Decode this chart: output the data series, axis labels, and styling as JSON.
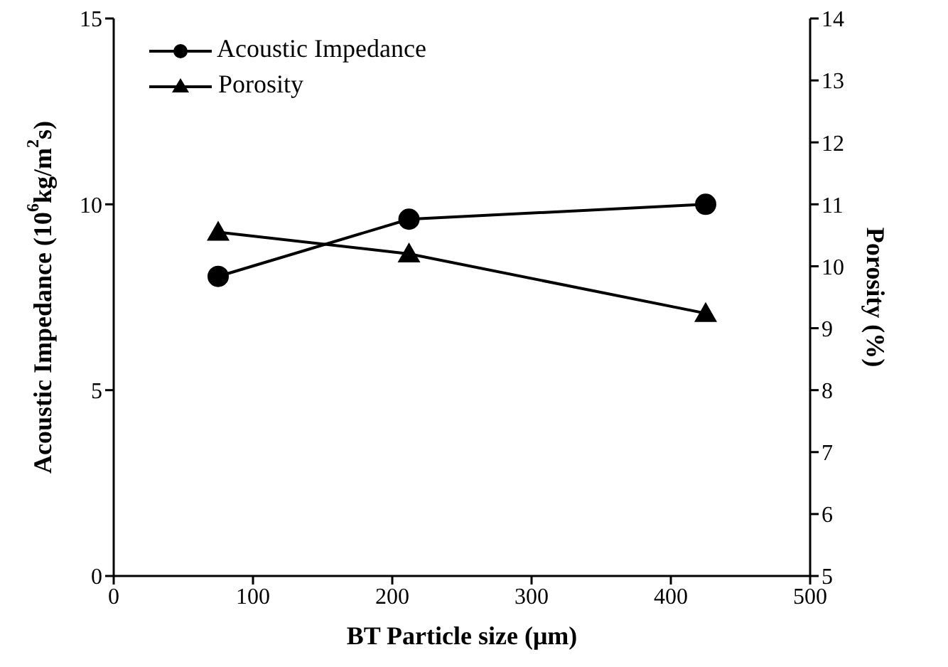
{
  "chart_data": {
    "type": "line",
    "xlabel": "BT Particle size (μm)",
    "ylabel": "Acoustic Impedance (10$^{6}$kg/m$^{2}$s)",
    "y2label": "Porosity (%)",
    "x": [
      75,
      212,
      425
    ],
    "series": [
      {
        "name": "Acoustic Impedance",
        "color": "#000000",
        "values": [
          8.06,
          9.6,
          10.0
        ],
        "marker": "circle"
      },
      {
        "name": "Porosity",
        "color": "#000000",
        "values": [
          10.55,
          10.2,
          9.24
        ],
        "marker": "triangle",
        "axis": "y2"
      }
    ],
    "xlim": [
      0,
      500
    ],
    "xticks": [
      0,
      100,
      200,
      300,
      400,
      500
    ],
    "ylim": [
      0,
      15
    ],
    "yticks": [
      0,
      5,
      10,
      15
    ],
    "y2lim": [
      5,
      14
    ],
    "y2ticks": [
      5,
      6,
      7,
      8,
      9,
      10,
      11,
      12,
      13,
      14
    ],
    "grid": false,
    "legend": "top left",
    "line_style": "solid"
  }
}
